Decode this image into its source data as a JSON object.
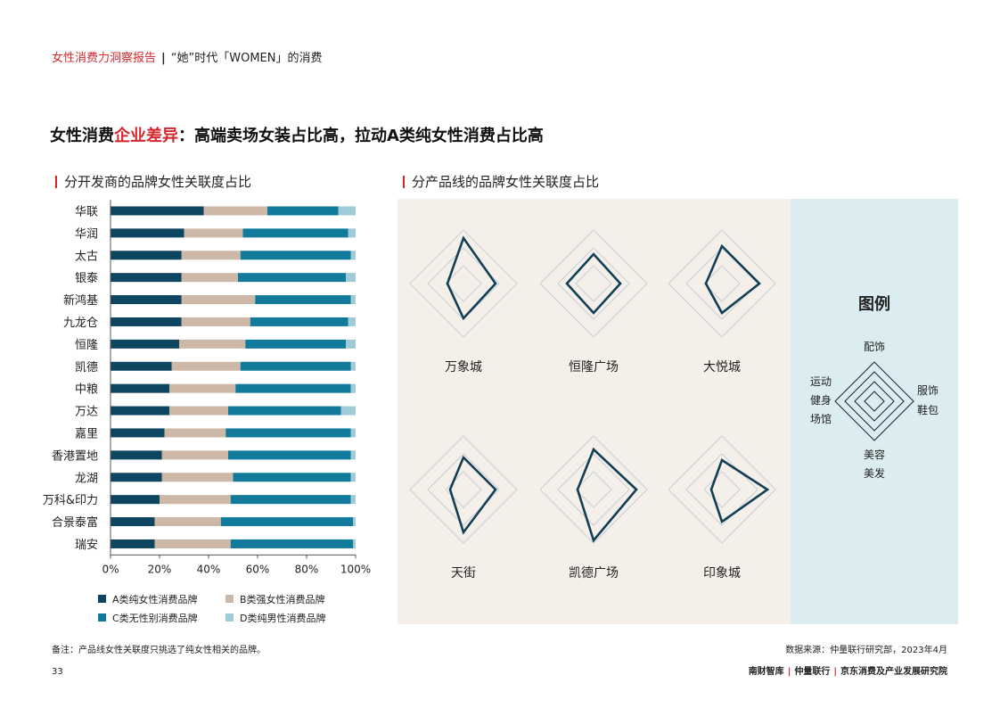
{
  "header": {
    "brand": "女性消费力洞察报告",
    "separator": "|",
    "subtitle": "“她”时代「WOMEN」的消费"
  },
  "title": {
    "part1": "女性消费",
    "highlight": "企业差异",
    "part2": "：高端卖场女装占比高，拉动A类纯女性消费占比高"
  },
  "left_section_title": "分开发商的品牌女性关联度占比",
  "right_section_title": "分产品线的品牌女性关联度占比",
  "chart_data": [
    {
      "type": "bar",
      "orientation": "horizontal",
      "stacked": "percent",
      "categories": [
        "华联",
        "华润",
        "太古",
        "银泰",
        "新鸿基",
        "九龙仓",
        "恒隆",
        "凯德",
        "中粮",
        "万达",
        "嘉里",
        "香港置地",
        "龙湖",
        "万科&印力",
        "合景泰富",
        "瑞安"
      ],
      "series": [
        {
          "name": "A类纯女性消费品牌",
          "color": "#0e4560",
          "values": [
            38,
            30,
            29,
            29,
            29,
            29,
            28,
            25,
            24,
            24,
            22,
            21,
            21,
            20,
            18,
            18
          ]
        },
        {
          "name": "B类强女性消费品牌",
          "color": "#cdb8a8",
          "values": [
            26,
            24,
            24,
            23,
            30,
            28,
            27,
            28,
            27,
            24,
            25,
            27,
            29,
            29,
            27,
            31
          ]
        },
        {
          "name": "C类无性别消费品牌",
          "color": "#127b9b",
          "values": [
            29,
            43,
            45,
            44,
            39,
            40,
            41,
            45,
            47,
            46,
            51,
            50,
            48,
            49,
            54,
            50
          ]
        },
        {
          "name": "D类纯男性消费品牌",
          "color": "#9fcbd8",
          "values": [
            7,
            3,
            2,
            4,
            2,
            3,
            4,
            2,
            2,
            6,
            2,
            2,
            2,
            2,
            1,
            1
          ]
        }
      ],
      "xlim": [
        0,
        100
      ],
      "x_ticks": [
        "0%",
        "20%",
        "40%",
        "60%",
        "80%",
        "100%"
      ],
      "legend_placement": "bottom"
    },
    {
      "type": "radar",
      "axes": [
        "配饰",
        "服饰鞋包",
        "美容美发",
        "运动健身场馆"
      ],
      "series": [
        {
          "name": "万象城",
          "values": [
            0.85,
            0.6,
            0.65,
            0.3
          ]
        },
        {
          "name": "恒隆广场",
          "values": [
            0.55,
            0.5,
            0.55,
            0.5
          ]
        },
        {
          "name": "大悦城",
          "values": [
            0.7,
            0.7,
            0.55,
            0.3
          ]
        },
        {
          "name": "天街",
          "values": [
            0.6,
            0.6,
            0.8,
            0.25
          ]
        },
        {
          "name": "凯德广场",
          "values": [
            0.75,
            0.8,
            0.95,
            0.3
          ]
        },
        {
          "name": "印象城",
          "values": [
            0.55,
            0.85,
            0.6,
            0.2
          ]
        }
      ],
      "line_color": "#123f55",
      "grid_color": "#b9c9d3"
    }
  ],
  "legend_box": {
    "title": "图例",
    "top": "配饰",
    "right": [
      "服饰",
      "鞋包"
    ],
    "bottom": [
      "美容",
      "美发"
    ],
    "left": [
      "运动",
      "健身",
      "场馆"
    ]
  },
  "footer": {
    "note": "备注：产品线女性关联度只挑选了纯女性相关的品牌。",
    "source": "数据来源：仲量联行研究部，2023年4月",
    "page": "33",
    "orgs": [
      "南财智库",
      "仲量联行",
      "京东消费及产业发展研究院"
    ],
    "org_sep": "|"
  }
}
